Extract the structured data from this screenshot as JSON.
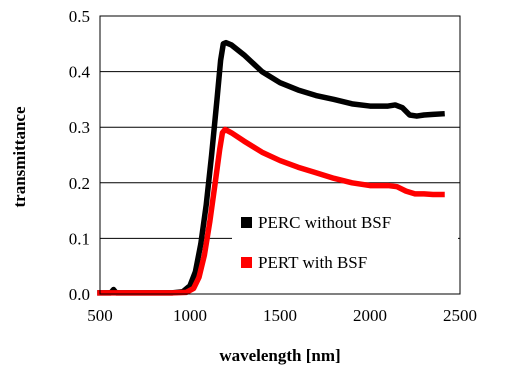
{
  "chart_data": {
    "type": "line",
    "title": "",
    "xlabel": "wavelength [nm]",
    "ylabel": "transmittance",
    "xlim": [
      500,
      2500
    ],
    "ylim": [
      0,
      0.5
    ],
    "xticks": [
      500,
      1000,
      1500,
      2000,
      2500
    ],
    "xtick_labels": [
      "500",
      "1000",
      "1500",
      "2000",
      "2500"
    ],
    "yticks": [
      0,
      0.1,
      0.2,
      0.3,
      0.4,
      0.5
    ],
    "ytick_labels": [
      "0.0",
      "0.1",
      "0.2",
      "0.3",
      "0.4",
      "0.5"
    ],
    "grid": "horizontal",
    "legend_position": "lower-right",
    "series": [
      {
        "name": "PERC without BSF",
        "color": "#000000",
        "points": [
          [
            500,
            0.002
          ],
          [
            560,
            0.002
          ],
          [
            575,
            0.008
          ],
          [
            590,
            0.002
          ],
          [
            700,
            0.002
          ],
          [
            900,
            0.002
          ],
          [
            960,
            0.004
          ],
          [
            1000,
            0.015
          ],
          [
            1030,
            0.04
          ],
          [
            1060,
            0.09
          ],
          [
            1090,
            0.16
          ],
          [
            1120,
            0.25
          ],
          [
            1150,
            0.35
          ],
          [
            1170,
            0.42
          ],
          [
            1185,
            0.45
          ],
          [
            1200,
            0.452
          ],
          [
            1230,
            0.448
          ],
          [
            1300,
            0.43
          ],
          [
            1400,
            0.4
          ],
          [
            1500,
            0.38
          ],
          [
            1600,
            0.367
          ],
          [
            1700,
            0.357
          ],
          [
            1800,
            0.35
          ],
          [
            1900,
            0.342
          ],
          [
            2000,
            0.338
          ],
          [
            2100,
            0.338
          ],
          [
            2140,
            0.34
          ],
          [
            2180,
            0.335
          ],
          [
            2220,
            0.322
          ],
          [
            2260,
            0.32
          ],
          [
            2300,
            0.322
          ],
          [
            2350,
            0.323
          ],
          [
            2400,
            0.324
          ]
        ]
      },
      {
        "name": "PERT with BSF",
        "color": "#ff0000",
        "points": [
          [
            500,
            0.002
          ],
          [
            700,
            0.002
          ],
          [
            900,
            0.002
          ],
          [
            980,
            0.003
          ],
          [
            1020,
            0.01
          ],
          [
            1050,
            0.03
          ],
          [
            1080,
            0.07
          ],
          [
            1110,
            0.13
          ],
          [
            1140,
            0.2
          ],
          [
            1165,
            0.26
          ],
          [
            1180,
            0.29
          ],
          [
            1195,
            0.296
          ],
          [
            1230,
            0.29
          ],
          [
            1300,
            0.275
          ],
          [
            1400,
            0.255
          ],
          [
            1500,
            0.24
          ],
          [
            1600,
            0.228
          ],
          [
            1700,
            0.218
          ],
          [
            1800,
            0.208
          ],
          [
            1900,
            0.2
          ],
          [
            2000,
            0.195
          ],
          [
            2100,
            0.195
          ],
          [
            2150,
            0.193
          ],
          [
            2200,
            0.185
          ],
          [
            2250,
            0.18
          ],
          [
            2300,
            0.18
          ],
          [
            2350,
            0.179
          ],
          [
            2400,
            0.179
          ]
        ]
      }
    ]
  }
}
